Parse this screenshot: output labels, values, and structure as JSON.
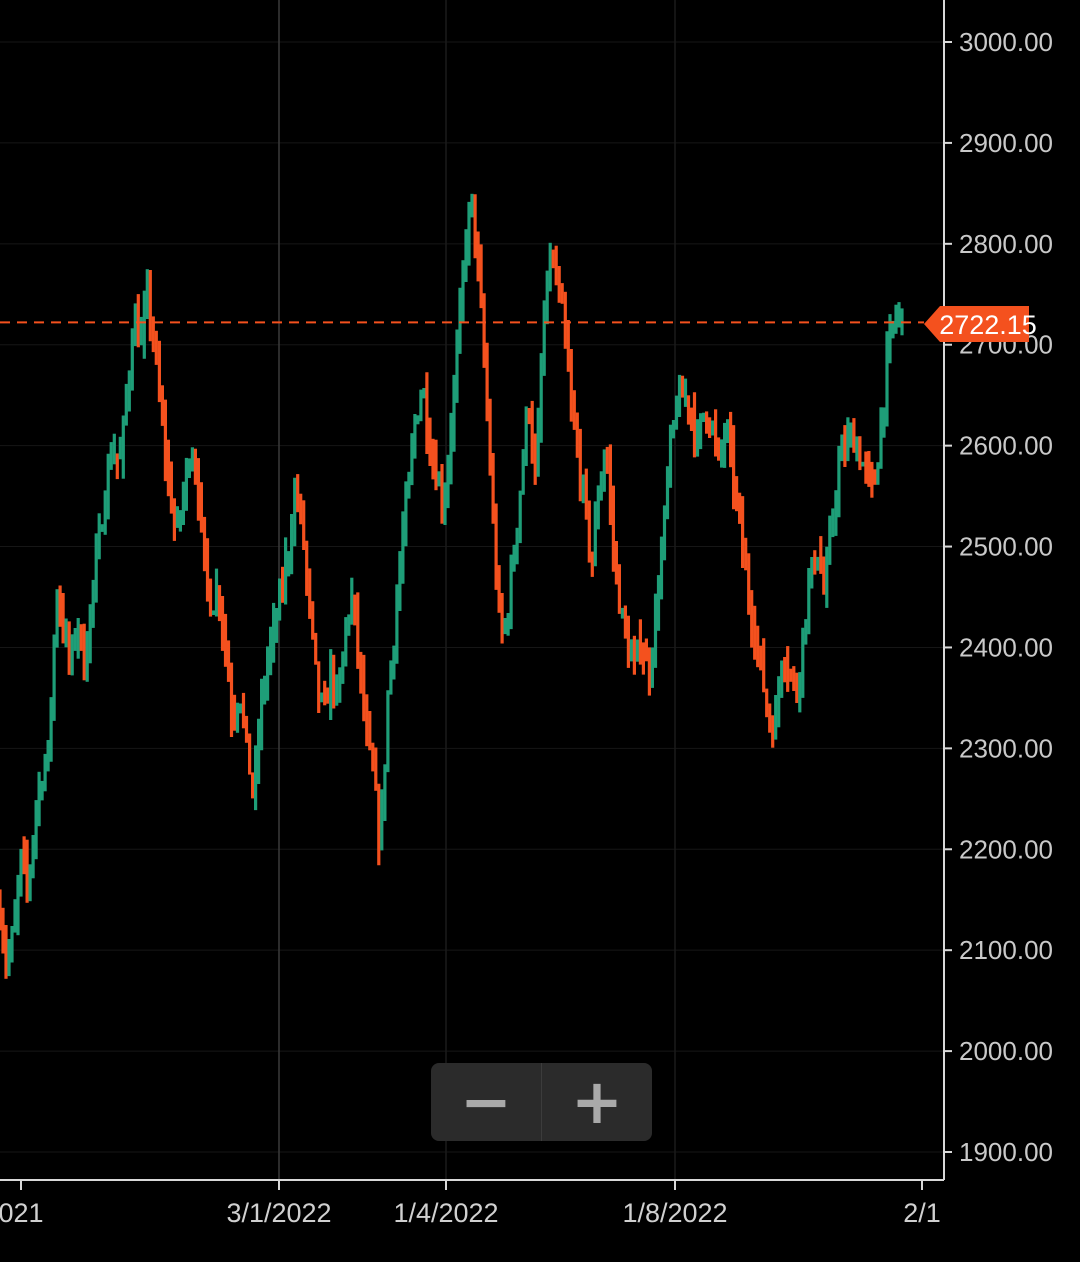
{
  "chart_data": {
    "type": "line",
    "y_axis": {
      "ticks": [
        "1900.00",
        "2000.00",
        "2100.00",
        "2200.00",
        "2300.00",
        "2400.00",
        "2500.00",
        "2600.00",
        "2700.00",
        "2800.00",
        "2900.00",
        "3000.00"
      ],
      "position": "right",
      "ylim": [
        1870,
        3040
      ]
    },
    "x_axis": {
      "tick_labels": [
        "021",
        "3/1/2022",
        "1/4/2022",
        "1/8/2022",
        "2/1"
      ]
    },
    "last_price": {
      "label": "2722.15",
      "value": 2722.15,
      "color": "#f4511e"
    },
    "grid": true,
    "colors": {
      "up": "#1e9e78",
      "down": "#f4511e"
    },
    "series": [
      {
        "values": [
          2140,
          2085,
          2120,
          2190,
          2160,
          2240,
          2275,
          2300,
          2460,
          2420,
          2380,
          2430,
          2380,
          2450,
          2500,
          2560,
          2600,
          2580,
          2650,
          2730,
          2700,
          2750,
          2690,
          2620,
          2560,
          2510,
          2550,
          2600,
          2570,
          2480,
          2440,
          2460,
          2400,
          2330,
          2360,
          2300,
          2250,
          2340,
          2390,
          2420,
          2460,
          2500,
          2560,
          2510,
          2430,
          2360,
          2330,
          2380,
          2340,
          2420,
          2450,
          2380,
          2310,
          2270,
          2200,
          2350,
          2420,
          2500,
          2560,
          2630,
          2660,
          2600,
          2570,
          2540,
          2620,
          2700,
          2800,
          2840,
          2760,
          2650,
          2520,
          2410,
          2430,
          2500,
          2570,
          2650,
          2560,
          2700,
          2790,
          2760,
          2720,
          2640,
          2590,
          2540,
          2480,
          2560,
          2600,
          2500,
          2440,
          2400,
          2380,
          2410,
          2370,
          2430,
          2500,
          2590,
          2640,
          2650,
          2640,
          2600,
          2640,
          2620,
          2580,
          2620,
          2570,
          2520,
          2460,
          2420,
          2380,
          2330,
          2320,
          2400,
          2380,
          2350,
          2420,
          2470,
          2500,
          2450,
          2520,
          2580,
          2600,
          2610,
          2590,
          2570,
          2555,
          2620,
          2690,
          2730,
          2722.15
        ]
      }
    ]
  },
  "zoom": {
    "minus": "−",
    "plus": "+"
  }
}
